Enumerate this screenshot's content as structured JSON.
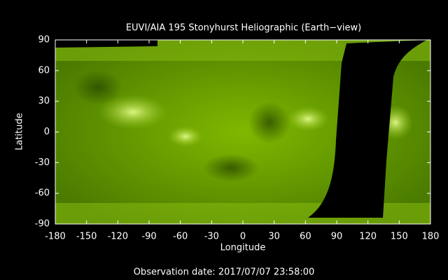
{
  "chart_data": {
    "type": "image",
    "title": "EUVI/AIA 195 Stonyhurst Heliographic (Earth−view)",
    "xlabel": "Longitude",
    "ylabel": "Latitude",
    "xlim": [
      -180,
      180
    ],
    "ylim": [
      -90,
      90
    ],
    "xticks": [
      -180,
      -150,
      -120,
      -90,
      -60,
      -30,
      0,
      30,
      60,
      90,
      120,
      150,
      180
    ],
    "yticks": [
      -90,
      -60,
      -30,
      0,
      30,
      60,
      90
    ],
    "annotation": "Observation date: 2017/07/07 23:58:00"
  }
}
